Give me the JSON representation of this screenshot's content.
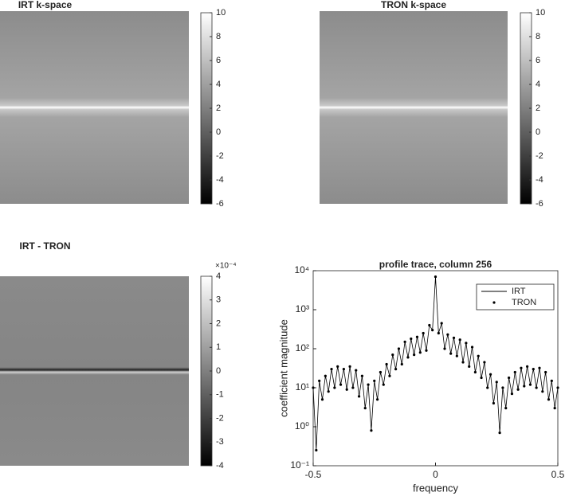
{
  "chart_data": [
    {
      "type": "image",
      "title": "IRT k-space",
      "clim": [
        -6,
        10
      ],
      "cticks": [
        10,
        8,
        6,
        4,
        2,
        0,
        -2,
        -4,
        -6
      ]
    },
    {
      "type": "image",
      "title": "TRON k-space",
      "clim": [
        -6,
        10
      ],
      "cticks": [
        10,
        8,
        6,
        4,
        2,
        0,
        -2,
        -4,
        -6
      ]
    },
    {
      "type": "image",
      "title": "IRT - TRON",
      "clim": [
        -4,
        4
      ],
      "cticks": [
        4,
        3,
        2,
        1,
        0,
        -1,
        -2,
        -3,
        -4
      ],
      "colorbar_multiplier": "×10⁻⁴"
    },
    {
      "type": "line",
      "title": "profile trace, column 256",
      "x_label": "frequency",
      "y_label": "coefficient magnitude",
      "log_y": true,
      "xlim": [
        -0.5,
        0.5
      ],
      "xticks": [
        -0.5,
        0,
        0.5
      ],
      "ylim": [
        0.1,
        10000
      ],
      "yticks": [
        {
          "value": 0.1,
          "label": "10⁻¹"
        },
        {
          "value": 1,
          "label": "10⁰"
        },
        {
          "value": 10,
          "label": "10¹"
        },
        {
          "value": 100,
          "label": "10²"
        },
        {
          "value": 1000,
          "label": "10³"
        },
        {
          "value": 10000,
          "label": "10⁴"
        }
      ],
      "legend": "upper right",
      "x": [
        -0.5,
        -0.4875,
        -0.475,
        -0.4625,
        -0.45,
        -0.4375,
        -0.425,
        -0.4125,
        -0.4,
        -0.3875,
        -0.375,
        -0.3625,
        -0.35,
        -0.3375,
        -0.325,
        -0.3125,
        -0.3,
        -0.2875,
        -0.275,
        -0.2625,
        -0.25,
        -0.2375,
        -0.225,
        -0.2125,
        -0.2,
        -0.1875,
        -0.175,
        -0.1625,
        -0.15,
        -0.1375,
        -0.125,
        -0.1125,
        -0.1,
        -0.0875,
        -0.075,
        -0.0625,
        -0.05,
        -0.0375,
        -0.025,
        -0.0125,
        0,
        0.0125,
        0.025,
        0.0375,
        0.05,
        0.0625,
        0.075,
        0.0875,
        0.1,
        0.1125,
        0.125,
        0.1375,
        0.15,
        0.1625,
        0.175,
        0.1875,
        0.2,
        0.2125,
        0.225,
        0.2375,
        0.25,
        0.2625,
        0.275,
        0.2875,
        0.3,
        0.3125,
        0.325,
        0.3375,
        0.35,
        0.3625,
        0.375,
        0.3875,
        0.4,
        0.4125,
        0.425,
        0.4375,
        0.45,
        0.4625,
        0.475,
        0.4875,
        0.5
      ],
      "series": [
        {
          "name": "IRT",
          "color": "#000000",
          "style": "line",
          "values": [
            10,
            0.25,
            15,
            5,
            20,
            8,
            30,
            10,
            35,
            12,
            30,
            9,
            35,
            10,
            28,
            6,
            20,
            3,
            12,
            0.8,
            15,
            5,
            25,
            12,
            40,
            20,
            70,
            30,
            100,
            40,
            150,
            60,
            180,
            70,
            200,
            80,
            250,
            90,
            400,
            300,
            7000,
            250,
            450,
            100,
            230,
            75,
            190,
            65,
            170,
            45,
            140,
            35,
            110,
            25,
            65,
            18,
            45,
            10,
            22,
            4,
            14,
            0.7,
            10,
            3,
            18,
            7,
            25,
            9,
            32,
            11,
            35,
            12,
            30,
            10,
            32,
            8,
            25,
            5,
            15,
            3,
            10
          ]
        },
        {
          "name": "TRON",
          "color": "#000000",
          "style": "dots",
          "values": [
            10,
            0.25,
            15,
            5,
            20,
            8,
            30,
            10,
            35,
            12,
            30,
            9,
            35,
            10,
            28,
            6,
            20,
            3,
            12,
            0.8,
            15,
            5,
            25,
            12,
            40,
            20,
            70,
            30,
            100,
            40,
            150,
            60,
            180,
            70,
            200,
            80,
            250,
            90,
            400,
            300,
            7000,
            250,
            450,
            100,
            230,
            75,
            190,
            65,
            170,
            45,
            140,
            35,
            110,
            25,
            65,
            18,
            45,
            10,
            22,
            4,
            14,
            0.7,
            10,
            3,
            18,
            7,
            25,
            9,
            32,
            11,
            35,
            12,
            30,
            10,
            32,
            8,
            25,
            5,
            15,
            3,
            10
          ]
        }
      ]
    }
  ]
}
